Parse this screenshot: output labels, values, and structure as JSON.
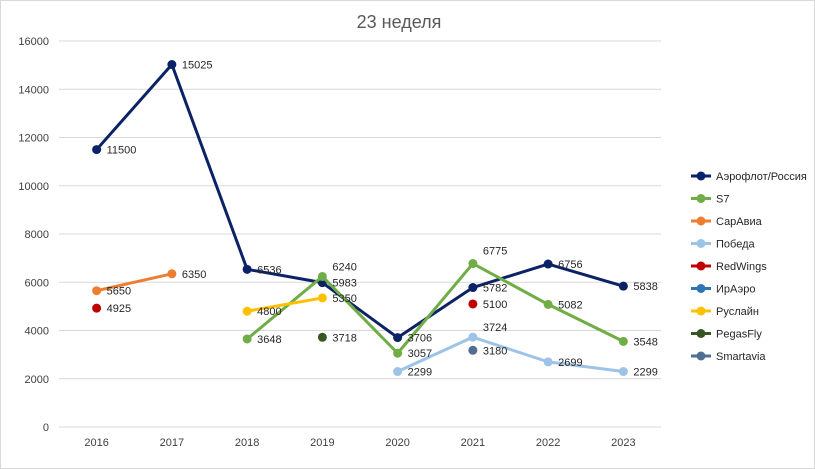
{
  "chart_data": {
    "type": "line",
    "title": "23 неделя",
    "xlabel": "",
    "ylabel": "",
    "categories": [
      "2016",
      "2017",
      "2018",
      "2019",
      "2020",
      "2021",
      "2022",
      "2023"
    ],
    "ylim": [
      0,
      16000
    ],
    "yticks": [
      0,
      2000,
      4000,
      6000,
      8000,
      10000,
      12000,
      14000,
      16000
    ],
    "grid": true,
    "legend_position": "right",
    "series": [
      {
        "name": "Аэрофлот/Россия",
        "color": "#0b2366",
        "values": [
          11500,
          15025,
          6536,
          5983,
          3706,
          5782,
          6756,
          5838
        ]
      },
      {
        "name": "S7",
        "color": "#70ad47",
        "values": [
          null,
          null,
          3648,
          6240,
          3057,
          6775,
          5082,
          3548
        ]
      },
      {
        "name": "СарАвиа",
        "color": "#ed7d31",
        "values": [
          5650,
          6350,
          null,
          null,
          null,
          null,
          null,
          null
        ]
      },
      {
        "name": "Победа",
        "color": "#9dc3e6",
        "values": [
          null,
          null,
          null,
          null,
          2299,
          3724,
          2699,
          2299
        ]
      },
      {
        "name": "RedWings",
        "color": "#c00000",
        "values": [
          4925,
          null,
          null,
          null,
          null,
          5100,
          null,
          null
        ]
      },
      {
        "name": "ИрАэро",
        "color": "#2e75b6",
        "values": [
          null,
          null,
          null,
          null,
          null,
          null,
          null,
          null
        ]
      },
      {
        "name": "Руслайн",
        "color": "#ffc000",
        "values": [
          null,
          null,
          4800,
          5350,
          null,
          null,
          null,
          null
        ]
      },
      {
        "name": "PegasFly",
        "color": "#375623",
        "values": [
          null,
          null,
          null,
          3718,
          null,
          null,
          null,
          null
        ]
      },
      {
        "name": "Smartavia",
        "color": "#4f6e94",
        "values": [
          null,
          null,
          null,
          null,
          null,
          3180,
          null,
          null
        ]
      }
    ]
  }
}
